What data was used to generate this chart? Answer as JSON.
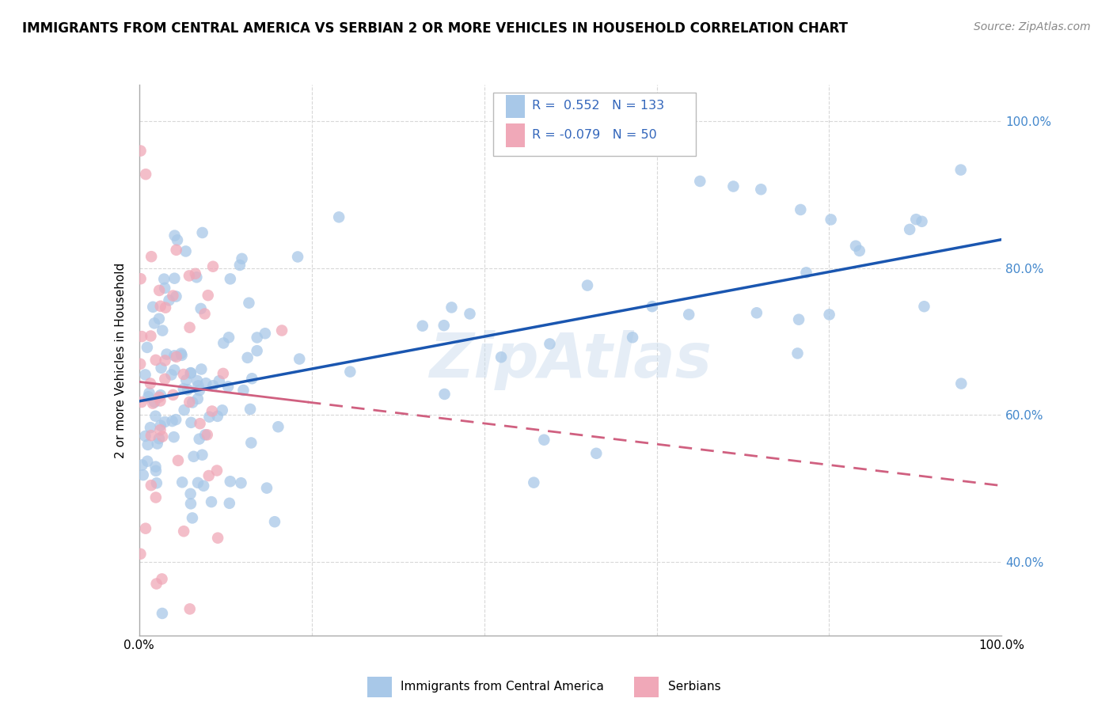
{
  "title": "IMMIGRANTS FROM CENTRAL AMERICA VS SERBIAN 2 OR MORE VEHICLES IN HOUSEHOLD CORRELATION CHART",
  "source": "Source: ZipAtlas.com",
  "ylabel": "2 or more Vehicles in Household",
  "xlim": [
    0.0,
    1.0
  ],
  "ylim": [
    0.3,
    1.05
  ],
  "y_ticks": [
    0.4,
    0.6,
    0.8,
    1.0
  ],
  "y_tick_labels": [
    "40.0%",
    "60.0%",
    "80.0%",
    "100.0%"
  ],
  "x_tick_labels": [
    "0.0%",
    "100.0%"
  ],
  "blue_R": "0.552",
  "blue_N": "133",
  "pink_R": "-0.079",
  "pink_N": "50",
  "blue_color": "#a8c8e8",
  "pink_color": "#f0a8b8",
  "blue_line_color": "#1a56b0",
  "pink_line_color": "#d06080",
  "watermark": "ZipAtlas",
  "grid_color": "#d8d8d8",
  "legend_label_blue": "Immigrants from Central America",
  "legend_label_pink": "Serbians"
}
